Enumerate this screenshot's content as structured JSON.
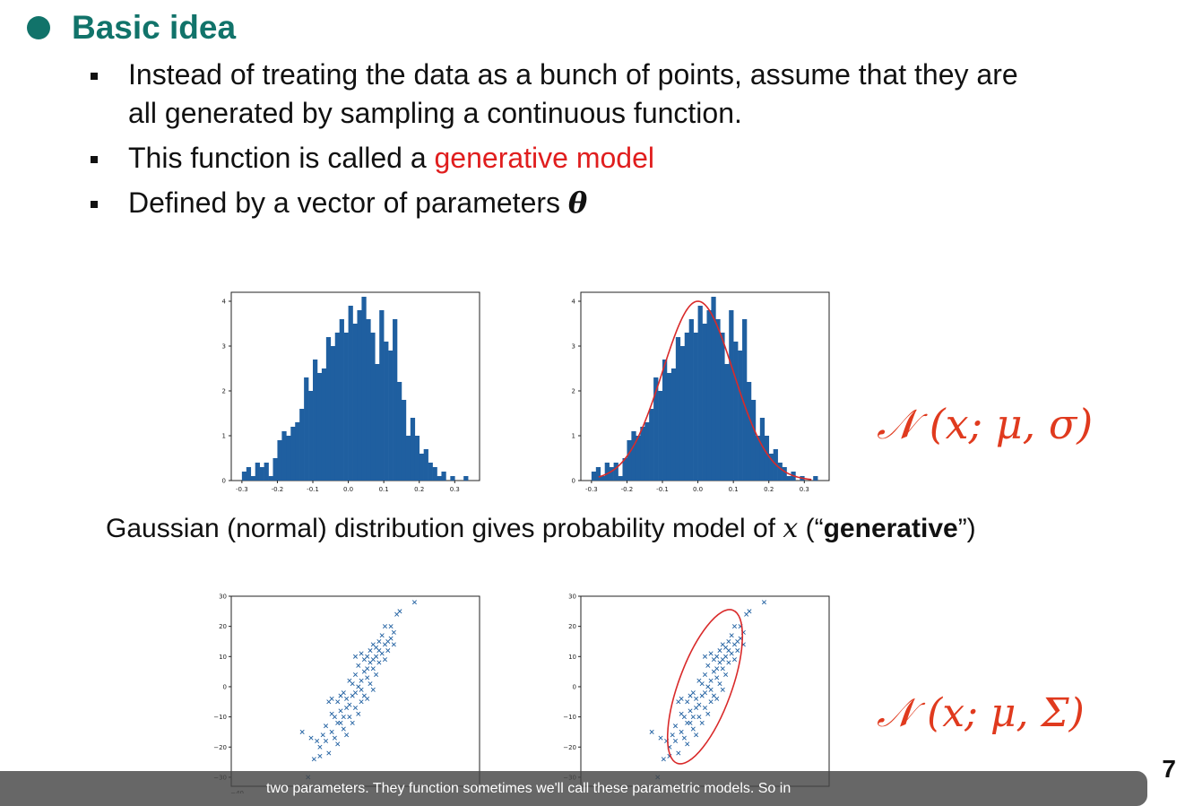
{
  "heading": "Basic idea",
  "bullets": {
    "b1_line1": "Instead of treating the data as a bunch of points, assume that they are",
    "b1_line2": "all generated by sampling a continuous function.",
    "b2_text": "This function is called a ",
    "b2_highlight": "generative model",
    "b3_text": "Defined by a vector of parameters ",
    "b3_symbol": "θ"
  },
  "formula_1d": "𝒩 (x; μ, σ)",
  "formula_2d": "𝒩 (x; μ, Σ)",
  "caption": {
    "before": "Gaussian (normal) distribution gives probability model of ",
    "var": "x",
    "mid": " (“",
    "bold": "generative",
    "after": "”)"
  },
  "page_number": "7",
  "subtitle": "two parameters. They function sometimes we'll call these parametric models. So in",
  "colors": {
    "heading": "#11736a",
    "highlight": "#e01e1e",
    "bars": "#1f5fa0",
    "fit": "#d92a2a",
    "formula": "#e03a1e"
  },
  "chart_data": [
    {
      "type": "bar",
      "x_ticks": [
        "-0.3",
        "-0.2",
        "-0.1",
        "0.0",
        "0.1",
        "0.2",
        "0.3"
      ],
      "y_ticks": [
        "0",
        "1",
        "2",
        "3",
        "4"
      ],
      "xlim": [
        -0.33,
        0.37
      ],
      "ylim": [
        0,
        4.2
      ],
      "bin_start": -0.3,
      "bin_width": 0.0125,
      "values": [
        0.2,
        0.3,
        0.1,
        0.4,
        0.3,
        0.4,
        0.1,
        0.5,
        0.9,
        1.1,
        1.0,
        1.2,
        1.3,
        1.6,
        2.3,
        2.0,
        2.7,
        2.4,
        2.5,
        3.2,
        3.0,
        3.3,
        3.6,
        3.3,
        3.9,
        3.5,
        3.8,
        4.1,
        3.6,
        3.3,
        2.6,
        3.8,
        3.1,
        2.9,
        3.6,
        2.2,
        1.8,
        1.0,
        1.4,
        1.0,
        0.6,
        0.7,
        0.4,
        0.3,
        0.1,
        0.2,
        0.0,
        0.1,
        0.0,
        0.0,
        0.1,
        0.0
      ]
    },
    {
      "type": "bar",
      "x_ticks": [
        "-0.3",
        "-0.2",
        "-0.1",
        "0.0",
        "0.1",
        "0.2",
        "0.3"
      ],
      "y_ticks": [
        "0",
        "1",
        "2",
        "3",
        "4"
      ],
      "xlim": [
        -0.33,
        0.37
      ],
      "ylim": [
        0,
        4.2
      ],
      "bin_start": -0.3,
      "bin_width": 0.0125,
      "values": [
        0.2,
        0.3,
        0.1,
        0.4,
        0.3,
        0.4,
        0.1,
        0.5,
        0.9,
        1.1,
        1.0,
        1.2,
        1.3,
        1.6,
        2.3,
        2.0,
        2.7,
        2.4,
        2.5,
        3.2,
        3.0,
        3.3,
        3.6,
        3.3,
        3.9,
        3.5,
        3.8,
        4.1,
        3.6,
        3.3,
        2.6,
        3.8,
        3.1,
        2.9,
        3.6,
        2.2,
        1.8,
        1.0,
        1.4,
        1.0,
        0.6,
        0.7,
        0.4,
        0.3,
        0.1,
        0.2,
        0.0,
        0.1,
        0.0,
        0.0,
        0.1,
        0.0
      ],
      "fit": {
        "type": "gaussian",
        "mu": 0.0,
        "sigma": 0.1,
        "peak": 4.0
      }
    },
    {
      "type": "scatter",
      "y_ticks": [
        "30",
        "20",
        "10",
        "0",
        "−10",
        "−20",
        "−30"
      ],
      "x_ticks": [
        "−40"
      ],
      "xlim": [
        -42,
        42
      ],
      "ylim": [
        -33,
        30
      ],
      "points": [
        [
          -4,
          -10
        ],
        [
          -2,
          -6
        ],
        [
          0,
          -2
        ],
        [
          2,
          2
        ],
        [
          4,
          6
        ],
        [
          6,
          9
        ],
        [
          8,
          12
        ],
        [
          10,
          14
        ],
        [
          -6,
          -12
        ],
        [
          -8,
          -15
        ],
        [
          -10,
          -18
        ],
        [
          -12,
          -20
        ],
        [
          -3,
          -4
        ],
        [
          1,
          0
        ],
        [
          3,
          5
        ],
        [
          5,
          8
        ],
        [
          7,
          10
        ],
        [
          9,
          11
        ],
        [
          -5,
          -8
        ],
        [
          -1,
          -3
        ],
        [
          2,
          -1
        ],
        [
          4,
          3
        ],
        [
          6,
          6
        ],
        [
          8,
          8
        ],
        [
          0,
          4
        ],
        [
          -2,
          2
        ],
        [
          -4,
          -2
        ],
        [
          -6,
          -5
        ],
        [
          -8,
          -9
        ],
        [
          -10,
          -13
        ],
        [
          3,
          9
        ],
        [
          5,
          12
        ],
        [
          1,
          7
        ],
        [
          -1,
          1
        ],
        [
          -3,
          -7
        ],
        [
          -5,
          -12
        ],
        [
          -7,
          -10
        ],
        [
          11,
          15
        ],
        [
          12,
          16
        ],
        [
          13,
          18
        ],
        [
          -14,
          -24
        ],
        [
          -16,
          -30
        ],
        [
          15,
          25
        ],
        [
          -18,
          -15
        ],
        [
          -12,
          -23
        ],
        [
          20,
          28
        ],
        [
          14,
          24
        ],
        [
          10,
          20
        ],
        [
          -9,
          -5
        ],
        [
          7,
          4
        ],
        [
          4,
          -4
        ],
        [
          -11,
          -16
        ],
        [
          6,
          14
        ],
        [
          2,
          11
        ],
        [
          -2,
          -10
        ],
        [
          0,
          -7
        ],
        [
          9,
          17
        ],
        [
          -7,
          -17
        ],
        [
          5,
          1
        ],
        [
          -4,
          -14
        ],
        [
          8,
          15
        ],
        [
          3,
          -3
        ],
        [
          -6,
          -19
        ],
        [
          11,
          12
        ],
        [
          12,
          20
        ],
        [
          -13,
          -18
        ],
        [
          -9,
          -22
        ],
        [
          1,
          -9
        ],
        [
          6,
          -1
        ],
        [
          -3,
          -16
        ],
        [
          10,
          9
        ],
        [
          4,
          10
        ],
        [
          -1,
          -12
        ],
        [
          2,
          -5
        ],
        [
          7,
          13
        ],
        [
          -15,
          -17
        ],
        [
          13,
          14
        ],
        [
          -8,
          -4
        ],
        [
          0,
          10
        ],
        [
          -5,
          -3
        ]
      ]
    },
    {
      "type": "scatter",
      "y_ticks": [
        "30",
        "20",
        "10",
        "0",
        "−10",
        "−20",
        "−30"
      ],
      "x_ticks": [],
      "xlim": [
        -42,
        42
      ],
      "ylim": [
        -33,
        30
      ],
      "points": [
        [
          -4,
          -10
        ],
        [
          -2,
          -6
        ],
        [
          0,
          -2
        ],
        [
          2,
          2
        ],
        [
          4,
          6
        ],
        [
          6,
          9
        ],
        [
          8,
          12
        ],
        [
          10,
          14
        ],
        [
          -6,
          -12
        ],
        [
          -8,
          -15
        ],
        [
          -10,
          -18
        ],
        [
          -12,
          -20
        ],
        [
          -3,
          -4
        ],
        [
          1,
          0
        ],
        [
          3,
          5
        ],
        [
          5,
          8
        ],
        [
          7,
          10
        ],
        [
          9,
          11
        ],
        [
          -5,
          -8
        ],
        [
          -1,
          -3
        ],
        [
          2,
          -1
        ],
        [
          4,
          3
        ],
        [
          6,
          6
        ],
        [
          8,
          8
        ],
        [
          0,
          4
        ],
        [
          -2,
          2
        ],
        [
          -4,
          -2
        ],
        [
          -6,
          -5
        ],
        [
          -8,
          -9
        ],
        [
          -10,
          -13
        ],
        [
          3,
          9
        ],
        [
          5,
          12
        ],
        [
          1,
          7
        ],
        [
          -1,
          1
        ],
        [
          -3,
          -7
        ],
        [
          -5,
          -12
        ],
        [
          -7,
          -10
        ],
        [
          11,
          15
        ],
        [
          12,
          16
        ],
        [
          13,
          18
        ],
        [
          -14,
          -24
        ],
        [
          -16,
          -30
        ],
        [
          15,
          25
        ],
        [
          -18,
          -15
        ],
        [
          -12,
          -23
        ],
        [
          20,
          28
        ],
        [
          14,
          24
        ],
        [
          10,
          20
        ],
        [
          -9,
          -5
        ],
        [
          7,
          4
        ],
        [
          4,
          -4
        ],
        [
          -11,
          -16
        ],
        [
          6,
          14
        ],
        [
          2,
          11
        ],
        [
          -2,
          -10
        ],
        [
          0,
          -7
        ],
        [
          9,
          17
        ],
        [
          -7,
          -17
        ],
        [
          5,
          1
        ],
        [
          -4,
          -14
        ],
        [
          8,
          15
        ],
        [
          3,
          -3
        ],
        [
          -6,
          -19
        ],
        [
          11,
          12
        ],
        [
          12,
          20
        ],
        [
          -13,
          -18
        ],
        [
          -9,
          -22
        ],
        [
          1,
          -9
        ],
        [
          6,
          -1
        ],
        [
          -3,
          -16
        ],
        [
          10,
          9
        ],
        [
          4,
          10
        ],
        [
          -1,
          -12
        ],
        [
          2,
          -5
        ],
        [
          7,
          13
        ],
        [
          -15,
          -17
        ],
        [
          13,
          14
        ],
        [
          -8,
          -4
        ],
        [
          0,
          10
        ],
        [
          -5,
          -3
        ]
      ],
      "ellipse": {
        "cx": 0,
        "cy": 0,
        "rx": 9,
        "ry": 27,
        "angle": 20
      }
    }
  ]
}
